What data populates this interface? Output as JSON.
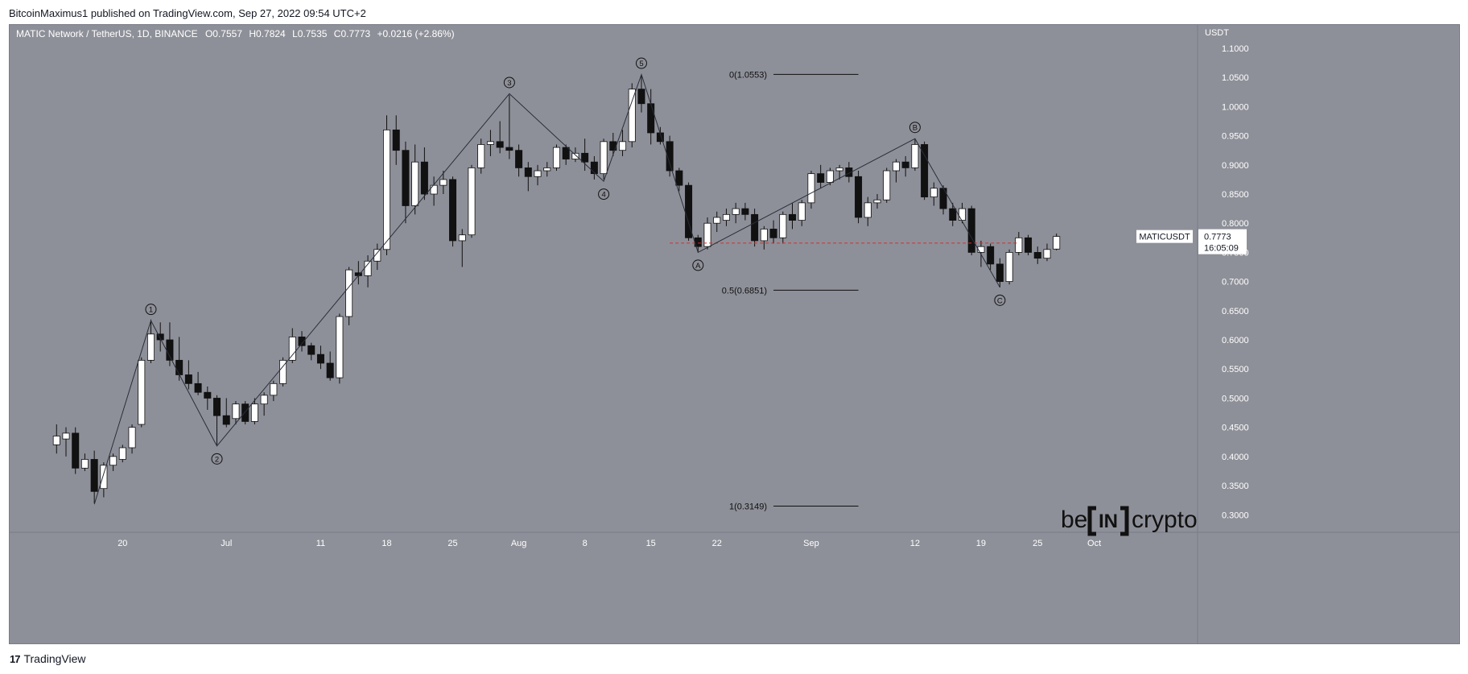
{
  "header": {
    "published": "BitcoinMaximus1 published on TradingView.com, Sep 27, 2022 09:54 UTC+2"
  },
  "footer": {
    "brand": "TradingView",
    "logo_icon": "tradingview-logo-icon"
  },
  "watermark": {
    "before": "be",
    "middle": "IN",
    "after": "crypto",
    "icon": "beincrypto-logo-icon"
  },
  "colors": {
    "background": "#8e9099",
    "candle_up": "#ffffff",
    "candle_down": "#111111",
    "wave_line": "#2a2e39",
    "support_line": "#d32f2f",
    "fib_line": "#111111"
  },
  "chart_data": {
    "type": "candlestick",
    "symbol_title": "MATIC Network / TetherUS, 1D, BINANCE",
    "ohlc_line": {
      "o_label": "O",
      "o": "0.7557",
      "h_label": "H",
      "h": "0.7824",
      "l_label": "L",
      "l": "0.7535",
      "c_label": "C",
      "c": "0.7773",
      "change": "+0.0216 (+2.86%)"
    },
    "y_axis": {
      "unit": "USDT",
      "min": 0.27,
      "max": 1.14,
      "ticks": [
        "1.1000",
        "1.0500",
        "1.0000",
        "0.9500",
        "0.9000",
        "0.8500",
        "0.8000",
        "0.7500",
        "0.7000",
        "0.6500",
        "0.6000",
        "0.5500",
        "0.5000",
        "0.4500",
        "0.4000",
        "0.3500",
        "0.3000"
      ]
    },
    "x_axis": {
      "start_date": "2022-06-14",
      "end_date": "2022-10-02",
      "ticks": [
        {
          "label": "20",
          "date": "2022-06-20"
        },
        {
          "label": "Jul",
          "date": "2022-07-01"
        },
        {
          "label": "11",
          "date": "2022-07-11"
        },
        {
          "label": "18",
          "date": "2022-07-18"
        },
        {
          "label": "25",
          "date": "2022-07-25"
        },
        {
          "label": "Aug",
          "date": "2022-08-01"
        },
        {
          "label": "8",
          "date": "2022-08-08"
        },
        {
          "label": "15",
          "date": "2022-08-15"
        },
        {
          "label": "22",
          "date": "2022-08-22"
        },
        {
          "label": "Sep",
          "date": "2022-09-01"
        },
        {
          "label": "12",
          "date": "2022-09-12"
        },
        {
          "label": "19",
          "date": "2022-09-19"
        },
        {
          "label": "25",
          "date": "2022-09-25"
        },
        {
          "label": "Oct",
          "date": "2022-10-01"
        }
      ]
    },
    "candles": [
      {
        "d": "2022-06-13",
        "o": 0.42,
        "h": 0.455,
        "l": 0.405,
        "c": 0.435
      },
      {
        "d": "2022-06-14",
        "o": 0.43,
        "h": 0.45,
        "l": 0.4,
        "c": 0.44
      },
      {
        "d": "2022-06-15",
        "o": 0.44,
        "h": 0.45,
        "l": 0.37,
        "c": 0.38
      },
      {
        "d": "2022-06-16",
        "o": 0.38,
        "h": 0.405,
        "l": 0.375,
        "c": 0.395
      },
      {
        "d": "2022-06-17",
        "o": 0.395,
        "h": 0.41,
        "l": 0.32,
        "c": 0.34
      },
      {
        "d": "2022-06-18",
        "o": 0.345,
        "h": 0.39,
        "l": 0.33,
        "c": 0.385
      },
      {
        "d": "2022-06-19",
        "o": 0.385,
        "h": 0.405,
        "l": 0.375,
        "c": 0.4
      },
      {
        "d": "2022-06-20",
        "o": 0.395,
        "h": 0.42,
        "l": 0.39,
        "c": 0.415
      },
      {
        "d": "2022-06-21",
        "o": 0.415,
        "h": 0.455,
        "l": 0.405,
        "c": 0.45
      },
      {
        "d": "2022-06-22",
        "o": 0.455,
        "h": 0.57,
        "l": 0.45,
        "c": 0.565
      },
      {
        "d": "2022-06-23",
        "o": 0.565,
        "h": 0.635,
        "l": 0.56,
        "c": 0.61
      },
      {
        "d": "2022-06-24",
        "o": 0.61,
        "h": 0.63,
        "l": 0.58,
        "c": 0.6
      },
      {
        "d": "2022-06-25",
        "o": 0.6,
        "h": 0.63,
        "l": 0.555,
        "c": 0.565
      },
      {
        "d": "2022-06-26",
        "o": 0.565,
        "h": 0.605,
        "l": 0.53,
        "c": 0.54
      },
      {
        "d": "2022-06-27",
        "o": 0.54,
        "h": 0.565,
        "l": 0.515,
        "c": 0.525
      },
      {
        "d": "2022-06-28",
        "o": 0.525,
        "h": 0.545,
        "l": 0.505,
        "c": 0.51
      },
      {
        "d": "2022-06-29",
        "o": 0.51,
        "h": 0.52,
        "l": 0.48,
        "c": 0.5
      },
      {
        "d": "2022-06-30",
        "o": 0.5,
        "h": 0.505,
        "l": 0.42,
        "c": 0.47
      },
      {
        "d": "2022-07-01",
        "o": 0.47,
        "h": 0.5,
        "l": 0.45,
        "c": 0.455
      },
      {
        "d": "2022-07-02",
        "o": 0.465,
        "h": 0.495,
        "l": 0.455,
        "c": 0.49
      },
      {
        "d": "2022-07-03",
        "o": 0.49,
        "h": 0.495,
        "l": 0.455,
        "c": 0.46
      },
      {
        "d": "2022-07-04",
        "o": 0.46,
        "h": 0.5,
        "l": 0.455,
        "c": 0.49
      },
      {
        "d": "2022-07-05",
        "o": 0.49,
        "h": 0.51,
        "l": 0.47,
        "c": 0.505
      },
      {
        "d": "2022-07-06",
        "o": 0.505,
        "h": 0.53,
        "l": 0.495,
        "c": 0.525
      },
      {
        "d": "2022-07-07",
        "o": 0.525,
        "h": 0.57,
        "l": 0.52,
        "c": 0.565
      },
      {
        "d": "2022-07-08",
        "o": 0.565,
        "h": 0.62,
        "l": 0.56,
        "c": 0.605
      },
      {
        "d": "2022-07-09",
        "o": 0.605,
        "h": 0.615,
        "l": 0.58,
        "c": 0.59
      },
      {
        "d": "2022-07-10",
        "o": 0.59,
        "h": 0.595,
        "l": 0.565,
        "c": 0.575
      },
      {
        "d": "2022-07-11",
        "o": 0.575,
        "h": 0.59,
        "l": 0.55,
        "c": 0.56
      },
      {
        "d": "2022-07-12",
        "o": 0.56,
        "h": 0.58,
        "l": 0.53,
        "c": 0.535
      },
      {
        "d": "2022-07-13",
        "o": 0.535,
        "h": 0.645,
        "l": 0.525,
        "c": 0.64
      },
      {
        "d": "2022-07-14",
        "o": 0.64,
        "h": 0.725,
        "l": 0.625,
        "c": 0.72
      },
      {
        "d": "2022-07-15",
        "o": 0.715,
        "h": 0.735,
        "l": 0.695,
        "c": 0.71
      },
      {
        "d": "2022-07-16",
        "o": 0.71,
        "h": 0.745,
        "l": 0.69,
        "c": 0.735
      },
      {
        "d": "2022-07-17",
        "o": 0.735,
        "h": 0.765,
        "l": 0.72,
        "c": 0.755
      },
      {
        "d": "2022-07-18",
        "o": 0.755,
        "h": 0.985,
        "l": 0.745,
        "c": 0.96
      },
      {
        "d": "2022-07-19",
        "o": 0.96,
        "h": 0.985,
        "l": 0.9,
        "c": 0.925
      },
      {
        "d": "2022-07-20",
        "o": 0.925,
        "h": 0.94,
        "l": 0.8,
        "c": 0.83
      },
      {
        "d": "2022-07-21",
        "o": 0.83,
        "h": 0.935,
        "l": 0.815,
        "c": 0.905
      },
      {
        "d": "2022-07-22",
        "o": 0.905,
        "h": 0.93,
        "l": 0.84,
        "c": 0.85
      },
      {
        "d": "2022-07-23",
        "o": 0.85,
        "h": 0.88,
        "l": 0.83,
        "c": 0.865
      },
      {
        "d": "2022-07-24",
        "o": 0.865,
        "h": 0.89,
        "l": 0.85,
        "c": 0.875
      },
      {
        "d": "2022-07-25",
        "o": 0.875,
        "h": 0.88,
        "l": 0.76,
        "c": 0.77
      },
      {
        "d": "2022-07-26",
        "o": 0.77,
        "h": 0.79,
        "l": 0.725,
        "c": 0.78
      },
      {
        "d": "2022-07-27",
        "o": 0.78,
        "h": 0.9,
        "l": 0.775,
        "c": 0.895
      },
      {
        "d": "2022-07-28",
        "o": 0.895,
        "h": 0.945,
        "l": 0.885,
        "c": 0.935
      },
      {
        "d": "2022-07-29",
        "o": 0.935,
        "h": 0.96,
        "l": 0.915,
        "c": 0.94
      },
      {
        "d": "2022-07-30",
        "o": 0.94,
        "h": 0.975,
        "l": 0.92,
        "c": 0.93
      },
      {
        "d": "2022-07-31",
        "o": 0.93,
        "h": 1.02,
        "l": 0.91,
        "c": 0.925
      },
      {
        "d": "2022-08-01",
        "o": 0.925,
        "h": 0.935,
        "l": 0.88,
        "c": 0.895
      },
      {
        "d": "2022-08-02",
        "o": 0.895,
        "h": 0.905,
        "l": 0.855,
        "c": 0.88
      },
      {
        "d": "2022-08-03",
        "o": 0.88,
        "h": 0.9,
        "l": 0.865,
        "c": 0.89
      },
      {
        "d": "2022-08-04",
        "o": 0.89,
        "h": 0.905,
        "l": 0.88,
        "c": 0.895
      },
      {
        "d": "2022-08-05",
        "o": 0.895,
        "h": 0.935,
        "l": 0.89,
        "c": 0.93
      },
      {
        "d": "2022-08-06",
        "o": 0.93,
        "h": 0.935,
        "l": 0.9,
        "c": 0.91
      },
      {
        "d": "2022-08-07",
        "o": 0.91,
        "h": 0.93,
        "l": 0.905,
        "c": 0.92
      },
      {
        "d": "2022-08-08",
        "o": 0.92,
        "h": 0.945,
        "l": 0.89,
        "c": 0.905
      },
      {
        "d": "2022-08-09",
        "o": 0.905,
        "h": 0.915,
        "l": 0.875,
        "c": 0.885
      },
      {
        "d": "2022-08-10",
        "o": 0.885,
        "h": 0.945,
        "l": 0.875,
        "c": 0.94
      },
      {
        "d": "2022-08-11",
        "o": 0.94,
        "h": 0.955,
        "l": 0.915,
        "c": 0.925
      },
      {
        "d": "2022-08-12",
        "o": 0.925,
        "h": 0.96,
        "l": 0.915,
        "c": 0.94
      },
      {
        "d": "2022-08-13",
        "o": 0.94,
        "h": 1.04,
        "l": 0.93,
        "c": 1.03
      },
      {
        "d": "2022-08-14",
        "o": 1.03,
        "h": 1.055,
        "l": 0.99,
        "c": 1.005
      },
      {
        "d": "2022-08-15",
        "o": 1.005,
        "h": 1.03,
        "l": 0.935,
        "c": 0.955
      },
      {
        "d": "2022-08-16",
        "o": 0.955,
        "h": 0.965,
        "l": 0.935,
        "c": 0.94
      },
      {
        "d": "2022-08-17",
        "o": 0.94,
        "h": 0.95,
        "l": 0.88,
        "c": 0.89
      },
      {
        "d": "2022-08-18",
        "o": 0.89,
        "h": 0.895,
        "l": 0.855,
        "c": 0.865
      },
      {
        "d": "2022-08-19",
        "o": 0.865,
        "h": 0.87,
        "l": 0.77,
        "c": 0.775
      },
      {
        "d": "2022-08-20",
        "o": 0.775,
        "h": 0.78,
        "l": 0.75,
        "c": 0.76
      },
      {
        "d": "2022-08-21",
        "o": 0.76,
        "h": 0.81,
        "l": 0.755,
        "c": 0.8
      },
      {
        "d": "2022-08-22",
        "o": 0.8,
        "h": 0.82,
        "l": 0.785,
        "c": 0.81
      },
      {
        "d": "2022-08-23",
        "o": 0.805,
        "h": 0.825,
        "l": 0.795,
        "c": 0.815
      },
      {
        "d": "2022-08-24",
        "o": 0.815,
        "h": 0.835,
        "l": 0.8,
        "c": 0.825
      },
      {
        "d": "2022-08-25",
        "o": 0.825,
        "h": 0.835,
        "l": 0.805,
        "c": 0.815
      },
      {
        "d": "2022-08-26",
        "o": 0.815,
        "h": 0.825,
        "l": 0.76,
        "c": 0.77
      },
      {
        "d": "2022-08-27",
        "o": 0.77,
        "h": 0.795,
        "l": 0.755,
        "c": 0.79
      },
      {
        "d": "2022-08-28",
        "o": 0.79,
        "h": 0.805,
        "l": 0.765,
        "c": 0.775
      },
      {
        "d": "2022-08-29",
        "o": 0.775,
        "h": 0.82,
        "l": 0.765,
        "c": 0.815
      },
      {
        "d": "2022-08-30",
        "o": 0.815,
        "h": 0.835,
        "l": 0.79,
        "c": 0.805
      },
      {
        "d": "2022-08-31",
        "o": 0.805,
        "h": 0.84,
        "l": 0.795,
        "c": 0.835
      },
      {
        "d": "2022-09-01",
        "o": 0.835,
        "h": 0.89,
        "l": 0.825,
        "c": 0.885
      },
      {
        "d": "2022-09-02",
        "o": 0.885,
        "h": 0.9,
        "l": 0.86,
        "c": 0.87
      },
      {
        "d": "2022-09-03",
        "o": 0.87,
        "h": 0.895,
        "l": 0.865,
        "c": 0.89
      },
      {
        "d": "2022-09-04",
        "o": 0.89,
        "h": 0.9,
        "l": 0.875,
        "c": 0.895
      },
      {
        "d": "2022-09-05",
        "o": 0.895,
        "h": 0.905,
        "l": 0.87,
        "c": 0.88
      },
      {
        "d": "2022-09-06",
        "o": 0.88,
        "h": 0.89,
        "l": 0.8,
        "c": 0.81
      },
      {
        "d": "2022-09-07",
        "o": 0.81,
        "h": 0.845,
        "l": 0.795,
        "c": 0.835
      },
      {
        "d": "2022-09-08",
        "o": 0.835,
        "h": 0.85,
        "l": 0.825,
        "c": 0.84
      },
      {
        "d": "2022-09-09",
        "o": 0.84,
        "h": 0.895,
        "l": 0.835,
        "c": 0.89
      },
      {
        "d": "2022-09-10",
        "o": 0.89,
        "h": 0.91,
        "l": 0.87,
        "c": 0.905
      },
      {
        "d": "2022-09-11",
        "o": 0.905,
        "h": 0.915,
        "l": 0.88,
        "c": 0.895
      },
      {
        "d": "2022-09-12",
        "o": 0.895,
        "h": 0.945,
        "l": 0.89,
        "c": 0.935
      },
      {
        "d": "2022-09-13",
        "o": 0.935,
        "h": 0.94,
        "l": 0.84,
        "c": 0.845
      },
      {
        "d": "2022-09-14",
        "o": 0.845,
        "h": 0.87,
        "l": 0.83,
        "c": 0.86
      },
      {
        "d": "2022-09-15",
        "o": 0.86,
        "h": 0.865,
        "l": 0.815,
        "c": 0.825
      },
      {
        "d": "2022-09-16",
        "o": 0.825,
        "h": 0.835,
        "l": 0.795,
        "c": 0.805
      },
      {
        "d": "2022-09-17",
        "o": 0.805,
        "h": 0.835,
        "l": 0.8,
        "c": 0.825
      },
      {
        "d": "2022-09-18",
        "o": 0.825,
        "h": 0.83,
        "l": 0.745,
        "c": 0.75
      },
      {
        "d": "2022-09-19",
        "o": 0.75,
        "h": 0.77,
        "l": 0.725,
        "c": 0.76
      },
      {
        "d": "2022-09-20",
        "o": 0.76,
        "h": 0.765,
        "l": 0.72,
        "c": 0.73
      },
      {
        "d": "2022-09-21",
        "o": 0.73,
        "h": 0.74,
        "l": 0.69,
        "c": 0.7
      },
      {
        "d": "2022-09-22",
        "o": 0.7,
        "h": 0.755,
        "l": 0.695,
        "c": 0.75
      },
      {
        "d": "2022-09-23",
        "o": 0.75,
        "h": 0.785,
        "l": 0.745,
        "c": 0.775
      },
      {
        "d": "2022-09-24",
        "o": 0.775,
        "h": 0.78,
        "l": 0.745,
        "c": 0.75
      },
      {
        "d": "2022-09-25",
        "o": 0.75,
        "h": 0.76,
        "l": 0.73,
        "c": 0.74
      },
      {
        "d": "2022-09-26",
        "o": 0.74,
        "h": 0.765,
        "l": 0.735,
        "c": 0.755
      },
      {
        "d": "2022-09-27",
        "o": 0.7557,
        "h": 0.7824,
        "l": 0.7535,
        "c": 0.7773
      }
    ],
    "wave_path": [
      {
        "d": "2022-06-17",
        "v": 0.318
      },
      {
        "d": "2022-06-23",
        "v": 0.633
      },
      {
        "d": "2022-06-30",
        "v": 0.418
      },
      {
        "d": "2022-07-31",
        "v": 1.022
      },
      {
        "d": "2022-08-10",
        "v": 0.872
      },
      {
        "d": "2022-08-14",
        "v": 1.055
      },
      {
        "d": "2022-08-20",
        "v": 0.75
      },
      {
        "d": "2022-09-12",
        "v": 0.945
      },
      {
        "d": "2022-09-21",
        "v": 0.69
      }
    ],
    "wave_labels": [
      {
        "text": "1",
        "d": "2022-06-23",
        "v": 0.633,
        "pos": "above"
      },
      {
        "text": "2",
        "d": "2022-06-30",
        "v": 0.418,
        "pos": "below"
      },
      {
        "text": "3",
        "d": "2022-07-31",
        "v": 1.022,
        "pos": "above"
      },
      {
        "text": "4",
        "d": "2022-08-10",
        "v": 0.872,
        "pos": "below"
      },
      {
        "text": "5",
        "d": "2022-08-14",
        "v": 1.055,
        "pos": "above"
      },
      {
        "text": "A",
        "d": "2022-08-20",
        "v": 0.75,
        "pos": "below"
      },
      {
        "text": "B",
        "d": "2022-09-12",
        "v": 0.945,
        "pos": "above"
      },
      {
        "text": "C",
        "d": "2022-09-21",
        "v": 0.69,
        "pos": "below"
      }
    ],
    "fib_levels": [
      {
        "label": "0(1.0553)",
        "value": 1.0553
      },
      {
        "label": "0.5(0.6851)",
        "value": 0.6851
      },
      {
        "label": "1(0.3149)",
        "value": 0.3149
      }
    ],
    "fib_range": {
      "from": "2022-08-28",
      "to": "2022-09-06"
    },
    "support_line": {
      "value": 0.766,
      "from": "2022-08-17",
      "to": "2022-09-23"
    },
    "price_tag": {
      "symbol": "MATICUSDT",
      "price": "0.7773",
      "countdown": "16:05:09",
      "value": 0.7773
    }
  }
}
